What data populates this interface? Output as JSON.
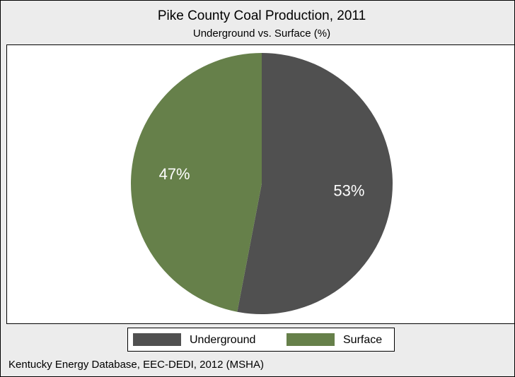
{
  "chart_data": {
    "type": "pie",
    "title": "Pike County Coal Production, 2011",
    "subtitle": "Underground vs. Surface (%)",
    "categories": [
      "Underground",
      "Surface"
    ],
    "values": [
      53,
      47
    ],
    "value_labels": [
      "53%",
      "47%"
    ],
    "colors": [
      "#505050",
      "#66804a"
    ],
    "source": "Kentucky Energy Database, EEC-DEDI, 2012  (MSHA)",
    "legend": "bottom"
  }
}
